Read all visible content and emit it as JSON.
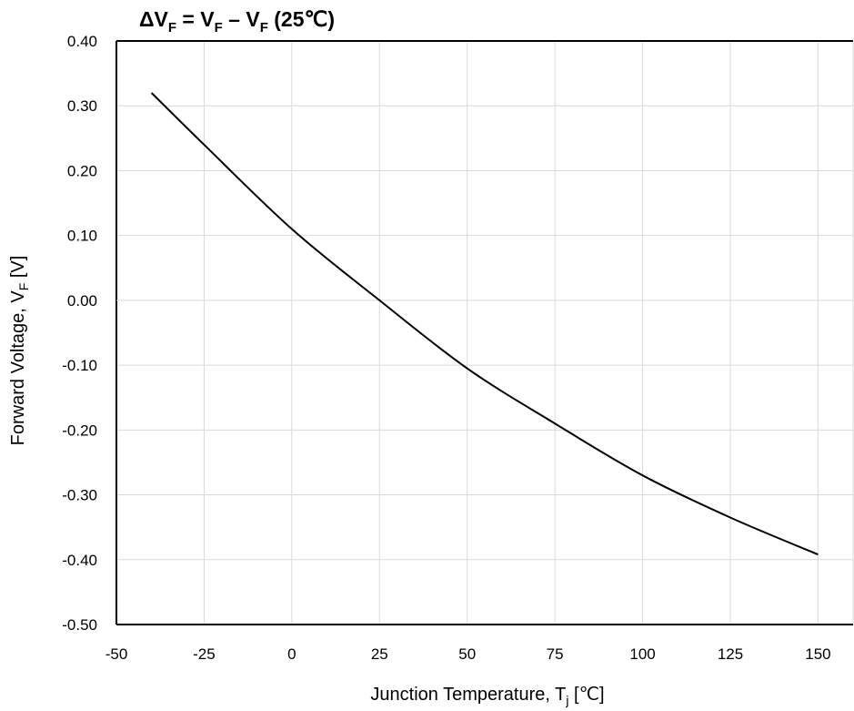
{
  "chart_data": {
    "type": "line",
    "title": {
      "prefix": "ΔV",
      "sub1": "F",
      "mid": " = V",
      "sub2": "F",
      "dash": " – V",
      "sub3": "F",
      "suffix": " (25℃)"
    },
    "xlabel": {
      "main": "Junction Temperature, T",
      "sub": "j",
      "unit": " [℃]"
    },
    "ylabel": {
      "main": "Forward Voltage, V",
      "sub": "F",
      "unit": " [V]"
    },
    "xlim": [
      -50,
      160
    ],
    "ylim": [
      -0.5,
      0.4
    ],
    "x_ticks": [
      -50,
      -25,
      0,
      25,
      50,
      75,
      100,
      125,
      150
    ],
    "x_tick_labels": [
      "-50",
      "-25",
      "0",
      "25",
      "50",
      "75",
      "100",
      "125",
      "150"
    ],
    "y_ticks": [
      0.4,
      0.3,
      0.2,
      0.1,
      0.0,
      -0.1,
      -0.2,
      -0.3,
      -0.4,
      -0.5
    ],
    "y_tick_labels": [
      "0.40",
      "0.30",
      "0.20",
      "0.10",
      "0.00",
      "-0.10",
      "-0.20",
      "-0.30",
      "-0.40",
      "-0.50"
    ],
    "grid": true,
    "series": [
      {
        "x": [
          -40,
          -25,
          0,
          25,
          50,
          75,
          100,
          125,
          150
        ],
        "y": [
          0.32,
          0.24,
          0.11,
          0.0,
          -0.105,
          -0.19,
          -0.27,
          -0.335,
          -0.392
        ]
      }
    ],
    "colors": {
      "line": "#000000",
      "grid": "#d9d9d9"
    }
  }
}
